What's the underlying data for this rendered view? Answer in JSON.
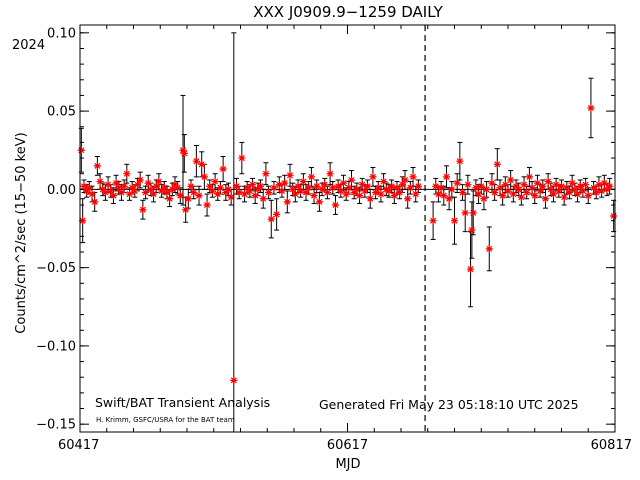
{
  "chart_data": {
    "type": "scatter",
    "title": "XXX J0909.9−1259 DAILY",
    "xlabel": "MJD",
    "ylabel": "Counts/cm^2/sec (15−50 keV)",
    "year_label": "2024",
    "xlim": [
      60417,
      60817
    ],
    "ylim": [
      -0.155,
      0.105
    ],
    "x_ticks": [
      60417,
      60617,
      60817
    ],
    "x_tick_labels": [
      "60417",
      "60617",
      "60817"
    ],
    "y_ticks": [
      -0.15,
      -0.1,
      -0.05,
      0.0,
      0.05,
      0.1
    ],
    "y_tick_labels": [
      "−0.15",
      "−0.10",
      "−0.05",
      "0.00",
      "0.05",
      "0.10"
    ],
    "zero_line": 0.0,
    "dashed_vline_x": 60675,
    "marker_color": "#ff0000",
    "errorbar_color": "#000000",
    "annotation_left": "Swift/BAT Transient Analysis",
    "annotation_credit": "H. Krimm, GSFC/USRA for the BAT team",
    "annotation_right": "Generated Fri May 23 05:18:10 UTC 2025",
    "points": [
      {
        "x": 60418,
        "y": 0.025,
        "err": 0.014
      },
      {
        "x": 60419,
        "y": -0.02,
        "err": 0.014
      },
      {
        "x": 60420,
        "y": 0.002,
        "err": 0.004
      },
      {
        "x": 60422,
        "y": -0.001,
        "err": 0.004
      },
      {
        "x": 60424,
        "y": 0.001,
        "err": 0.004
      },
      {
        "x": 60426,
        "y": -0.003,
        "err": 0.005
      },
      {
        "x": 60428,
        "y": -0.008,
        "err": 0.006
      },
      {
        "x": 60430,
        "y": 0.015,
        "err": 0.006
      },
      {
        "x": 60432,
        "y": 0.005,
        "err": 0.005
      },
      {
        "x": 60434,
        "y": 0.0,
        "err": 0.004
      },
      {
        "x": 60436,
        "y": -0.002,
        "err": 0.005
      },
      {
        "x": 60438,
        "y": 0.003,
        "err": 0.005
      },
      {
        "x": 60440,
        "y": -0.001,
        "err": 0.004
      },
      {
        "x": 60442,
        "y": -0.004,
        "err": 0.005
      },
      {
        "x": 60444,
        "y": 0.004,
        "err": 0.005
      },
      {
        "x": 60446,
        "y": 0.001,
        "err": 0.004
      },
      {
        "x": 60448,
        "y": -0.002,
        "err": 0.005
      },
      {
        "x": 60450,
        "y": 0.002,
        "err": 0.004
      },
      {
        "x": 60452,
        "y": 0.01,
        "err": 0.006
      },
      {
        "x": 60454,
        "y": -0.003,
        "err": 0.004
      },
      {
        "x": 60456,
        "y": 0.001,
        "err": 0.004
      },
      {
        "x": 60458,
        "y": -0.001,
        "err": 0.004
      },
      {
        "x": 60460,
        "y": 0.003,
        "err": 0.004
      },
      {
        "x": 60462,
        "y": 0.006,
        "err": 0.005
      },
      {
        "x": 60464,
        "y": -0.013,
        "err": 0.006
      },
      {
        "x": 60466,
        "y": -0.002,
        "err": 0.004
      },
      {
        "x": 60468,
        "y": 0.004,
        "err": 0.005
      },
      {
        "x": 60470,
        "y": 0.0,
        "err": 0.004
      },
      {
        "x": 60472,
        "y": -0.003,
        "err": 0.005
      },
      {
        "x": 60474,
        "y": 0.002,
        "err": 0.004
      },
      {
        "x": 60476,
        "y": 0.005,
        "err": 0.005
      },
      {
        "x": 60478,
        "y": -0.001,
        "err": 0.004
      },
      {
        "x": 60480,
        "y": 0.001,
        "err": 0.004
      },
      {
        "x": 60482,
        "y": -0.002,
        "err": 0.004
      },
      {
        "x": 60484,
        "y": -0.006,
        "err": 0.005
      },
      {
        "x": 60486,
        "y": 0.0,
        "err": 0.004
      },
      {
        "x": 60488,
        "y": 0.003,
        "err": 0.005
      },
      {
        "x": 60490,
        "y": 0.001,
        "err": 0.004
      },
      {
        "x": 60492,
        "y": -0.004,
        "err": 0.005
      },
      {
        "x": 60494,
        "y": 0.025,
        "err": 0.035
      },
      {
        "x": 60495,
        "y": 0.023,
        "err": 0.012
      },
      {
        "x": 60496,
        "y": -0.013,
        "err": 0.008
      },
      {
        "x": 60498,
        "y": -0.006,
        "err": 0.006
      },
      {
        "x": 60500,
        "y": 0.002,
        "err": 0.004
      },
      {
        "x": 60502,
        "y": -0.002,
        "err": 0.004
      },
      {
        "x": 60504,
        "y": 0.018,
        "err": 0.01
      },
      {
        "x": 60506,
        "y": -0.004,
        "err": 0.006
      },
      {
        "x": 60508,
        "y": 0.016,
        "err": 0.008
      },
      {
        "x": 60510,
        "y": 0.008,
        "err": 0.008
      },
      {
        "x": 60512,
        "y": -0.01,
        "err": 0.007
      },
      {
        "x": 60514,
        "y": 0.002,
        "err": 0.004
      },
      {
        "x": 60516,
        "y": -0.001,
        "err": 0.004
      },
      {
        "x": 60518,
        "y": 0.005,
        "err": 0.005
      },
      {
        "x": 60520,
        "y": -0.003,
        "err": 0.004
      },
      {
        "x": 60522,
        "y": 0.001,
        "err": 0.004
      },
      {
        "x": 60524,
        "y": 0.013,
        "err": 0.008
      },
      {
        "x": 60526,
        "y": -0.002,
        "err": 0.005
      },
      {
        "x": 60528,
        "y": 0.0,
        "err": 0.004
      },
      {
        "x": 60530,
        "y": -0.005,
        "err": 0.005
      },
      {
        "x": 60532,
        "y": -0.122,
        "err": 0.222
      },
      {
        "x": 60534,
        "y": 0.002,
        "err": 0.005
      },
      {
        "x": 60536,
        "y": -0.002,
        "err": 0.004
      },
      {
        "x": 60538,
        "y": 0.02,
        "err": 0.01
      },
      {
        "x": 60540,
        "y": -0.003,
        "err": 0.005
      },
      {
        "x": 60542,
        "y": 0.001,
        "err": 0.004
      },
      {
        "x": 60544,
        "y": -0.001,
        "err": 0.004
      },
      {
        "x": 60546,
        "y": 0.003,
        "err": 0.004
      },
      {
        "x": 60548,
        "y": -0.004,
        "err": 0.005
      },
      {
        "x": 60550,
        "y": 0.0,
        "err": 0.004
      },
      {
        "x": 60552,
        "y": 0.002,
        "err": 0.004
      },
      {
        "x": 60554,
        "y": -0.006,
        "err": 0.006
      },
      {
        "x": 60556,
        "y": 0.01,
        "err": 0.007
      },
      {
        "x": 60558,
        "y": -0.002,
        "err": 0.004
      },
      {
        "x": 60560,
        "y": -0.019,
        "err": 0.012
      },
      {
        "x": 60562,
        "y": 0.001,
        "err": 0.004
      },
      {
        "x": 60564,
        "y": -0.016,
        "err": 0.01
      },
      {
        "x": 60566,
        "y": 0.003,
        "err": 0.005
      },
      {
        "x": 60568,
        "y": -0.001,
        "err": 0.004
      },
      {
        "x": 60570,
        "y": 0.004,
        "err": 0.005
      },
      {
        "x": 60572,
        "y": -0.008,
        "err": 0.007
      },
      {
        "x": 60574,
        "y": 0.009,
        "err": 0.007
      },
      {
        "x": 60576,
        "y": 0.0,
        "err": 0.004
      },
      {
        "x": 60578,
        "y": -0.003,
        "err": 0.005
      },
      {
        "x": 60580,
        "y": 0.002,
        "err": 0.004
      },
      {
        "x": 60582,
        "y": -0.001,
        "err": 0.004
      },
      {
        "x": 60584,
        "y": 0.005,
        "err": 0.005
      },
      {
        "x": 60586,
        "y": -0.002,
        "err": 0.005
      },
      {
        "x": 60588,
        "y": 0.001,
        "err": 0.004
      },
      {
        "x": 60590,
        "y": 0.008,
        "err": 0.006
      },
      {
        "x": 60592,
        "y": -0.004,
        "err": 0.005
      },
      {
        "x": 60594,
        "y": 0.002,
        "err": 0.004
      },
      {
        "x": 60596,
        "y": -0.008,
        "err": 0.006
      },
      {
        "x": 60598,
        "y": 0.0,
        "err": 0.004
      },
      {
        "x": 60600,
        "y": 0.003,
        "err": 0.004
      },
      {
        "x": 60602,
        "y": -0.002,
        "err": 0.004
      },
      {
        "x": 60604,
        "y": 0.01,
        "err": 0.007
      },
      {
        "x": 60606,
        "y": 0.001,
        "err": 0.004
      },
      {
        "x": 60608,
        "y": -0.01,
        "err": 0.006
      },
      {
        "x": 60610,
        "y": 0.002,
        "err": 0.004
      },
      {
        "x": 60612,
        "y": -0.001,
        "err": 0.004
      },
      {
        "x": 60614,
        "y": 0.004,
        "err": 0.005
      },
      {
        "x": 60616,
        "y": -0.003,
        "err": 0.004
      },
      {
        "x": 60618,
        "y": 0.001,
        "err": 0.004
      },
      {
        "x": 60620,
        "y": 0.006,
        "err": 0.006
      },
      {
        "x": 60622,
        "y": -0.002,
        "err": 0.004
      },
      {
        "x": 60624,
        "y": 0.0,
        "err": 0.004
      },
      {
        "x": 60626,
        "y": -0.004,
        "err": 0.005
      },
      {
        "x": 60628,
        "y": 0.003,
        "err": 0.004
      },
      {
        "x": 60630,
        "y": -0.001,
        "err": 0.004
      },
      {
        "x": 60632,
        "y": 0.002,
        "err": 0.004
      },
      {
        "x": 60634,
        "y": -0.006,
        "err": 0.006
      },
      {
        "x": 60636,
        "y": 0.008,
        "err": 0.006
      },
      {
        "x": 60638,
        "y": -0.002,
        "err": 0.004
      },
      {
        "x": 60640,
        "y": 0.001,
        "err": 0.004
      },
      {
        "x": 60642,
        "y": -0.003,
        "err": 0.005
      },
      {
        "x": 60644,
        "y": 0.005,
        "err": 0.005
      },
      {
        "x": 60646,
        "y": 0.0,
        "err": 0.004
      },
      {
        "x": 60648,
        "y": -0.001,
        "err": 0.004
      },
      {
        "x": 60650,
        "y": 0.002,
        "err": 0.004
      },
      {
        "x": 60652,
        "y": -0.004,
        "err": 0.005
      },
      {
        "x": 60654,
        "y": 0.001,
        "err": 0.004
      },
      {
        "x": 60656,
        "y": -0.002,
        "err": 0.004
      },
      {
        "x": 60658,
        "y": 0.003,
        "err": 0.005
      },
      {
        "x": 60660,
        "y": 0.006,
        "err": 0.006
      },
      {
        "x": 60662,
        "y": -0.006,
        "err": 0.006
      },
      {
        "x": 60664,
        "y": 0.001,
        "err": 0.004
      },
      {
        "x": 60666,
        "y": 0.008,
        "err": 0.006
      },
      {
        "x": 60668,
        "y": -0.003,
        "err": 0.005
      },
      {
        "x": 60670,
        "y": 0.002,
        "err": 0.004
      },
      {
        "x": 60681,
        "y": -0.02,
        "err": 0.012
      },
      {
        "x": 60683,
        "y": 0.002,
        "err": 0.005
      },
      {
        "x": 60685,
        "y": -0.003,
        "err": 0.005
      },
      {
        "x": 60687,
        "y": 0.001,
        "err": 0.004
      },
      {
        "x": 60689,
        "y": -0.004,
        "err": 0.006
      },
      {
        "x": 60691,
        "y": 0.008,
        "err": 0.007
      },
      {
        "x": 60693,
        "y": -0.006,
        "err": 0.007
      },
      {
        "x": 60695,
        "y": 0.0,
        "err": 0.005
      },
      {
        "x": 60697,
        "y": -0.02,
        "err": 0.015
      },
      {
        "x": 60699,
        "y": 0.004,
        "err": 0.006
      },
      {
        "x": 60701,
        "y": 0.018,
        "err": 0.012
      },
      {
        "x": 60703,
        "y": -0.002,
        "err": 0.005
      },
      {
        "x": 60705,
        "y": -0.015,
        "err": 0.012
      },
      {
        "x": 60707,
        "y": 0.003,
        "err": 0.006
      },
      {
        "x": 60709,
        "y": -0.051,
        "err": 0.024
      },
      {
        "x": 60710,
        "y": -0.026,
        "err": 0.018
      },
      {
        "x": 60711,
        "y": -0.015,
        "err": 0.014
      },
      {
        "x": 60713,
        "y": 0.001,
        "err": 0.005
      },
      {
        "x": 60715,
        "y": -0.003,
        "err": 0.006
      },
      {
        "x": 60717,
        "y": 0.002,
        "err": 0.005
      },
      {
        "x": 60719,
        "y": -0.006,
        "err": 0.007
      },
      {
        "x": 60721,
        "y": 0.0,
        "err": 0.005
      },
      {
        "x": 60723,
        "y": -0.038,
        "err": 0.014
      },
      {
        "x": 60725,
        "y": 0.004,
        "err": 0.006
      },
      {
        "x": 60727,
        "y": -0.002,
        "err": 0.005
      },
      {
        "x": 60729,
        "y": 0.016,
        "err": 0.01
      },
      {
        "x": 60731,
        "y": 0.001,
        "err": 0.005
      },
      {
        "x": 60733,
        "y": -0.004,
        "err": 0.006
      },
      {
        "x": 60735,
        "y": 0.003,
        "err": 0.005
      },
      {
        "x": 60737,
        "y": -0.001,
        "err": 0.004
      },
      {
        "x": 60739,
        "y": 0.006,
        "err": 0.006
      },
      {
        "x": 60741,
        "y": -0.003,
        "err": 0.005
      },
      {
        "x": 60743,
        "y": 0.002,
        "err": 0.004
      },
      {
        "x": 60745,
        "y": 0.0,
        "err": 0.004
      },
      {
        "x": 60747,
        "y": -0.005,
        "err": 0.005
      },
      {
        "x": 60749,
        "y": 0.003,
        "err": 0.005
      },
      {
        "x": 60751,
        "y": -0.002,
        "err": 0.004
      },
      {
        "x": 60753,
        "y": 0.008,
        "err": 0.006
      },
      {
        "x": 60755,
        "y": 0.001,
        "err": 0.004
      },
      {
        "x": 60757,
        "y": -0.004,
        "err": 0.005
      },
      {
        "x": 60759,
        "y": 0.004,
        "err": 0.005
      },
      {
        "x": 60761,
        "y": -0.001,
        "err": 0.004
      },
      {
        "x": 60763,
        "y": 0.002,
        "err": 0.004
      },
      {
        "x": 60765,
        "y": -0.006,
        "err": 0.006
      },
      {
        "x": 60767,
        "y": 0.005,
        "err": 0.005
      },
      {
        "x": 60769,
        "y": 0.0,
        "err": 0.004
      },
      {
        "x": 60771,
        "y": -0.003,
        "err": 0.005
      },
      {
        "x": 60773,
        "y": 0.003,
        "err": 0.004
      },
      {
        "x": 60775,
        "y": -0.001,
        "err": 0.004
      },
      {
        "x": 60777,
        "y": 0.002,
        "err": 0.004
      },
      {
        "x": 60779,
        "y": -0.005,
        "err": 0.005
      },
      {
        "x": 60781,
        "y": 0.001,
        "err": 0.004
      },
      {
        "x": 60783,
        "y": -0.002,
        "err": 0.004
      },
      {
        "x": 60785,
        "y": 0.004,
        "err": 0.005
      },
      {
        "x": 60787,
        "y": 0.0,
        "err": 0.004
      },
      {
        "x": 60789,
        "y": -0.003,
        "err": 0.005
      },
      {
        "x": 60791,
        "y": 0.002,
        "err": 0.004
      },
      {
        "x": 60793,
        "y": -0.001,
        "err": 0.004
      },
      {
        "x": 60795,
        "y": 0.003,
        "err": 0.004
      },
      {
        "x": 60797,
        "y": -0.004,
        "err": 0.005
      },
      {
        "x": 60799,
        "y": 0.052,
        "err": 0.019
      },
      {
        "x": 60801,
        "y": 0.001,
        "err": 0.004
      },
      {
        "x": 60803,
        "y": -0.002,
        "err": 0.004
      },
      {
        "x": 60805,
        "y": 0.003,
        "err": 0.005
      },
      {
        "x": 60807,
        "y": -0.001,
        "err": 0.004
      },
      {
        "x": 60809,
        "y": 0.004,
        "err": 0.005
      },
      {
        "x": 60811,
        "y": 0.0,
        "err": 0.004
      },
      {
        "x": 60813,
        "y": 0.002,
        "err": 0.005
      },
      {
        "x": 60816,
        "y": -0.017,
        "err": 0.01
      }
    ]
  }
}
